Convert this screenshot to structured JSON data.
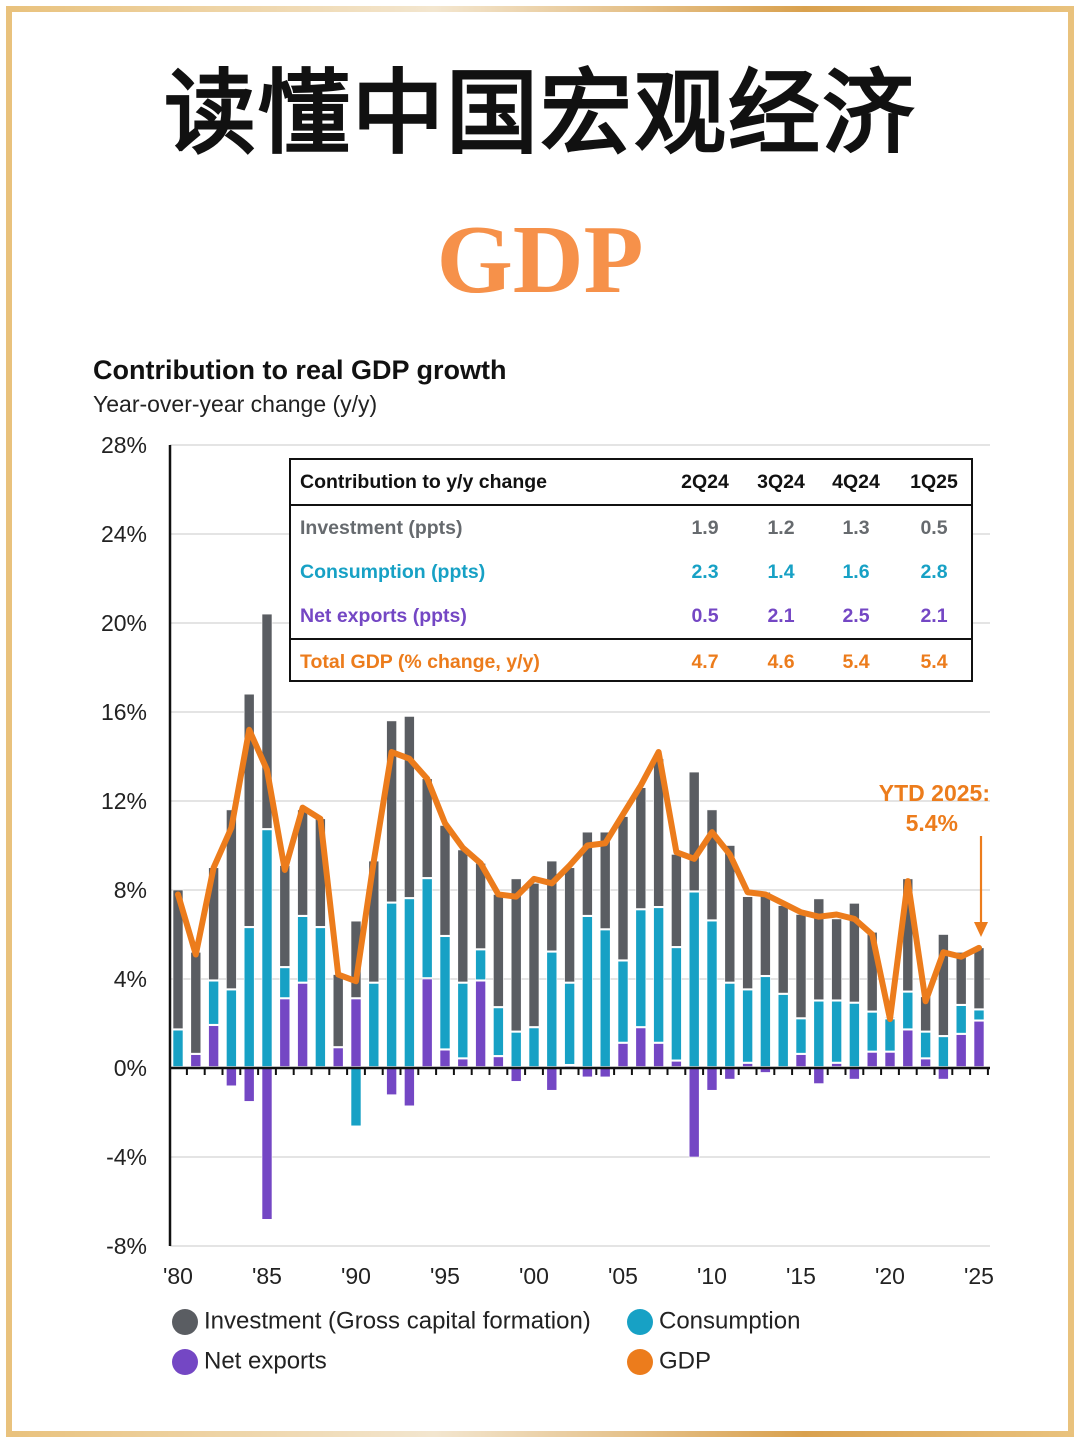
{
  "header": {
    "title_cn": "读懂中国宏观经济",
    "subtitle": "GDP"
  },
  "colors": {
    "investment": "#5a5d62",
    "consumption": "#17a1c5",
    "net_exports": "#7447c4",
    "gdp": "#ec7c1c",
    "gdp_heading": "#f6914a",
    "frame": "#e7c07a"
  },
  "table": {
    "header_label": "Contribution to y/y change",
    "columns": [
      "2Q24",
      "3Q24",
      "4Q24",
      "1Q25"
    ],
    "rows": [
      {
        "label": "Investment (ppts)",
        "values": [
          "1.9",
          "1.2",
          "1.3",
          "0.5"
        ]
      },
      {
        "label": "Consumption (ppts)",
        "values": [
          "2.3",
          "1.4",
          "1.6",
          "2.8"
        ]
      },
      {
        "label": "Net exports (ppts)",
        "values": [
          "0.5",
          "2.1",
          "2.5",
          "2.1"
        ]
      },
      {
        "label": "Total GDP (% change, y/y)",
        "values": [
          "4.7",
          "4.6",
          "5.4",
          "5.4"
        ]
      }
    ]
  },
  "annotation": {
    "line1": "YTD 2025:",
    "line2": "5.4%"
  },
  "chart_data": {
    "type": "bar",
    "stacked": true,
    "title": "Contribution to real GDP growth",
    "subtitle": "Year-over-year change (y/y)",
    "xlabel": "",
    "ylabel": "",
    "ylim": [
      -8,
      28
    ],
    "yticks": [
      28,
      24,
      20,
      16,
      12,
      8,
      4,
      0,
      -4,
      -8
    ],
    "ytick_labels": [
      "28%",
      "24%",
      "20%",
      "16%",
      "12%",
      "8%",
      "4%",
      "0%",
      "-4%",
      "-8%"
    ],
    "xtick_labels": [
      "'80",
      "'85",
      "'90",
      "'95",
      "'00",
      "'05",
      "'10",
      "'15",
      "'20",
      "'25"
    ],
    "grid": true,
    "legend_position": "bottom",
    "categories": [
      1980,
      1981,
      1982,
      1983,
      1984,
      1985,
      1986,
      1987,
      1988,
      1989,
      1990,
      1991,
      1992,
      1993,
      1994,
      1995,
      1996,
      1997,
      1998,
      1999,
      2000,
      2001,
      2002,
      2003,
      2004,
      2005,
      2006,
      2007,
      2008,
      2009,
      2010,
      2011,
      2012,
      2013,
      2014,
      2015,
      2016,
      2017,
      2018,
      2019,
      2020,
      2021,
      2022,
      2023,
      2024,
      2025
    ],
    "series": [
      {
        "name": "Net exports",
        "type": "bar",
        "values": [
          0,
          0.6,
          1.9,
          -0.8,
          -1.5,
          -6.8,
          3.1,
          3.8,
          0,
          0.9,
          3.1,
          0,
          -1.2,
          -1.7,
          4.0,
          0.8,
          0.4,
          3.9,
          0.5,
          -0.6,
          0,
          -1.0,
          0.1,
          -0.4,
          -0.4,
          1.1,
          1.8,
          1.1,
          0.3,
          -4.0,
          -1.0,
          -0.5,
          0.2,
          -0.2,
          0,
          0.6,
          -0.7,
          0.2,
          -0.5,
          0.7,
          0.7,
          1.7,
          0.4,
          -0.5,
          1.5,
          2.1
        ]
      },
      {
        "name": "Consumption",
        "type": "bar",
        "values": [
          1.7,
          0,
          2.0,
          3.5,
          6.3,
          10.7,
          1.4,
          3.0,
          6.3,
          0,
          -2.6,
          3.8,
          7.4,
          7.6,
          4.5,
          5.1,
          3.4,
          1.4,
          2.2,
          1.6,
          1.8,
          5.2,
          3.7,
          6.8,
          6.2,
          3.7,
          5.3,
          6.1,
          5.1,
          7.9,
          6.6,
          3.8,
          3.3,
          4.1,
          3.3,
          1.6,
          3.0,
          2.8,
          2.9,
          1.8,
          1.5,
          1.7,
          1.2,
          1.4,
          1.3,
          0.5
        ]
      },
      {
        "name": "Investment (Gross capital formation)",
        "type": "bar",
        "values": [
          6.3,
          4.6,
          5.1,
          8.1,
          10.5,
          9.7,
          4.6,
          4.8,
          4.9,
          3.3,
          3.5,
          5.5,
          8.2,
          8.2,
          4.5,
          5.0,
          6.0,
          3.9,
          5.1,
          6.9,
          6.5,
          4.1,
          5.2,
          3.8,
          4.4,
          6.5,
          5.5,
          6.7,
          4.2,
          5.4,
          5.0,
          6.2,
          4.2,
          3.8,
          4.0,
          4.7,
          4.6,
          3.7,
          4.5,
          3.6,
          0.1,
          5.1,
          1.6,
          4.6,
          2.4,
          2.8
        ]
      },
      {
        "name": "GDP",
        "type": "line",
        "values": [
          7.8,
          5.1,
          9.0,
          10.8,
          15.2,
          13.4,
          8.9,
          11.7,
          11.2,
          4.2,
          3.9,
          9.3,
          14.2,
          13.9,
          13.0,
          11.0,
          9.9,
          9.2,
          7.8,
          7.7,
          8.5,
          8.3,
          9.1,
          10.0,
          10.1,
          11.4,
          12.7,
          14.2,
          9.7,
          9.4,
          10.6,
          9.6,
          7.9,
          7.8,
          7.4,
          7.0,
          6.8,
          6.9,
          6.7,
          6.0,
          2.2,
          8.4,
          3.0,
          5.2,
          5.0,
          5.4
        ]
      }
    ],
    "annotation": "YTD 2025: 5.4%"
  },
  "legend": [
    {
      "label": "Investment (Gross capital formation)",
      "key": "investment"
    },
    {
      "label": "Consumption",
      "key": "consumption"
    },
    {
      "label": "Net exports",
      "key": "net_exports"
    },
    {
      "label": "GDP",
      "key": "gdp"
    }
  ]
}
